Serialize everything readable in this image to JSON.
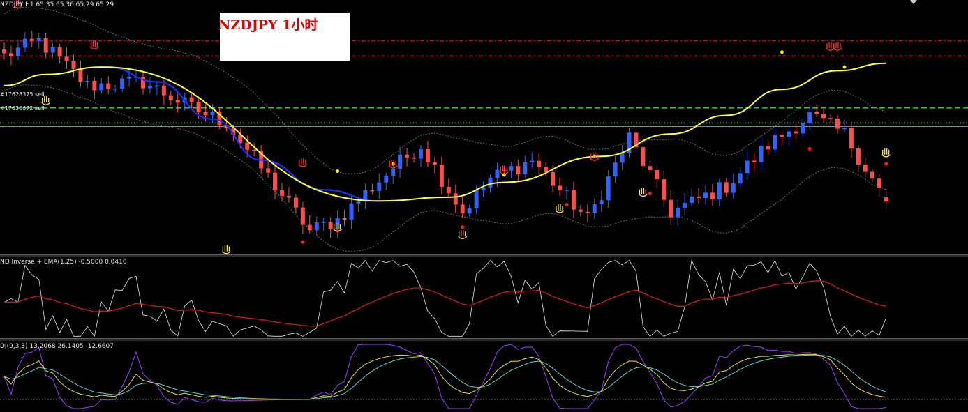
{
  "header": {
    "main_label": "NZDJPY,H1  65.35 65.36 65.29 65.29",
    "overlay_text": "NZDJPY 1小时"
  },
  "order_lines": {
    "line1": "#17628375 sell",
    "line2": "#17630672 sell"
  },
  "indicators": {
    "ind1_label": "ND Inverse + EMA(1,25) -0.5000 0.0410",
    "ind2_label": "DJ(9,3,3) 13.2068 26.1405 -12.6607"
  },
  "colors": {
    "bull": "#2f63ff",
    "bear": "#ff4d4d",
    "ma_blue": "#1f2cff",
    "ma_yellow": "#ffff33",
    "ema_red": "#d11a1a",
    "fisher_white": "#e8e8e8",
    "k_line": "#e7e03a",
    "d_line": "#5ad3d3",
    "j_line": "#9a3cff",
    "order_green": "#2ecc2e",
    "order_red": "#e02222",
    "signal_yellow": "#ffee00",
    "signal_red": "#ff1a1a"
  },
  "chart_data": {
    "type": "candlestick",
    "symbol": "NZDJPY",
    "timeframe": "H1",
    "n_bars": 128,
    "last_ohlc": {
      "open": 65.35,
      "high": 65.36,
      "low": 65.29,
      "close": 65.29
    },
    "anchors_close": [
      [
        0,
        67.25
      ],
      [
        5,
        67.45
      ],
      [
        12,
        66.85
      ],
      [
        20,
        66.9
      ],
      [
        27,
        66.55
      ],
      [
        32,
        66.35
      ],
      [
        44,
        64.9
      ],
      [
        48,
        65.05
      ],
      [
        56,
        65.75
      ],
      [
        60,
        66.05
      ],
      [
        66,
        65.15
      ],
      [
        70,
        65.6
      ],
      [
        76,
        65.85
      ],
      [
        84,
        65.05
      ],
      [
        90,
        66.15
      ],
      [
        96,
        65.15
      ],
      [
        104,
        65.5
      ],
      [
        110,
        66.05
      ],
      [
        116,
        66.45
      ],
      [
        121,
        66.2
      ],
      [
        127,
        65.29
      ]
    ],
    "ma_slow_points": [
      [
        15,
        67.1
      ],
      [
        22,
        66.9
      ],
      [
        30,
        66.4
      ],
      [
        37,
        65.85
      ],
      [
        46,
        65.45
      ],
      [
        54,
        65.3
      ]
    ],
    "ma_fast_points": [
      [
        0,
        66.85
      ],
      [
        6,
        67.0
      ],
      [
        14,
        67.1
      ],
      [
        54,
        65.3
      ],
      [
        64,
        65.35
      ],
      [
        72,
        65.55
      ],
      [
        86,
        65.9
      ],
      [
        96,
        66.2
      ],
      [
        104,
        66.45
      ],
      [
        112,
        66.8
      ],
      [
        120,
        67.05
      ],
      [
        127,
        67.15
      ]
    ],
    "order_lines": [
      {
        "label": "#17628375 sell",
        "price": 66.55,
        "color": "green"
      },
      {
        "label": "#17630672 sell",
        "price": 66.35,
        "color": "green"
      }
    ],
    "resistance_lines": [
      67.45,
      67.25
    ]
  }
}
